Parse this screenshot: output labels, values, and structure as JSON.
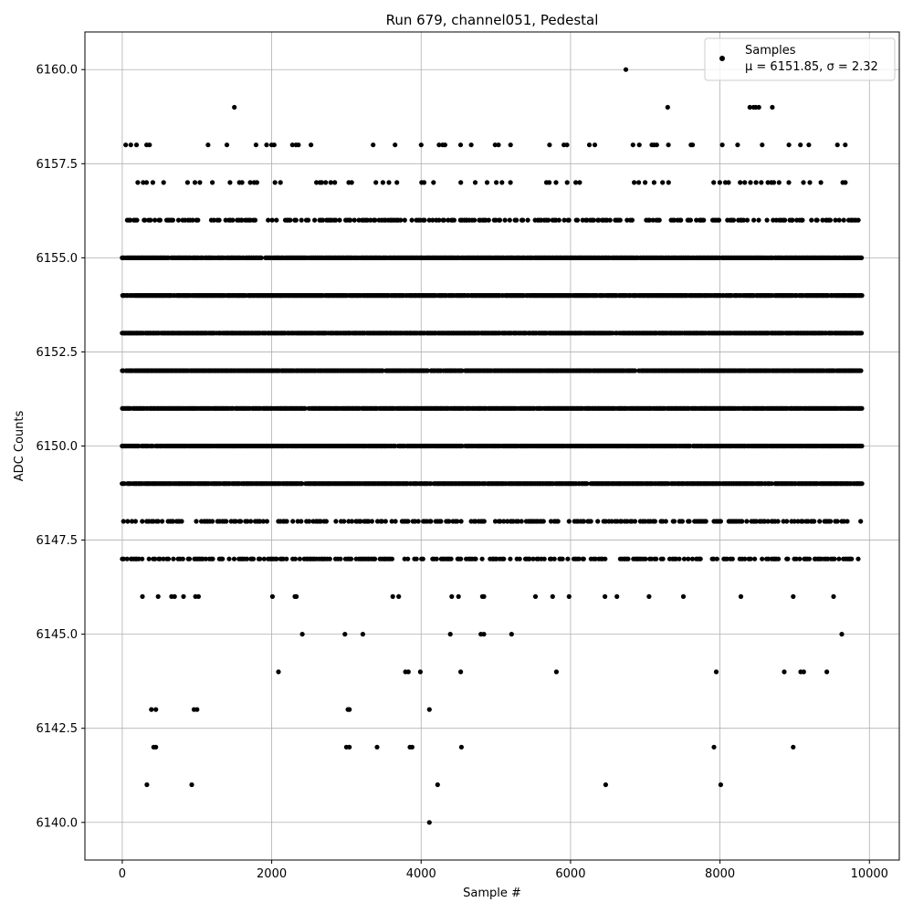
{
  "chart_data": {
    "type": "scatter",
    "title": "Run 679, channel051, Pedestal",
    "xlabel": "Sample #",
    "ylabel": "ADC Counts",
    "xlim": [
      -500,
      10400
    ],
    "ylim": [
      6139.0,
      6161.0
    ],
    "xticks": [
      0,
      2000,
      4000,
      6000,
      8000,
      10000
    ],
    "xtick_labels": [
      "0",
      "2000",
      "4000",
      "6000",
      "8000",
      "10000"
    ],
    "yticks": [
      6140.0,
      6142.5,
      6145.0,
      6147.5,
      6150.0,
      6152.5,
      6155.0,
      6157.5,
      6160.0
    ],
    "ytick_labels": [
      "6140.0",
      "6142.5",
      "6145.0",
      "6147.5",
      "6150.0",
      "6152.5",
      "6155.0",
      "6157.5",
      "6160.0"
    ],
    "grid": true,
    "legend": {
      "position": "top-right",
      "series_label": "Samples",
      "stats_label": "μ = 6151.85, σ = 2.32"
    },
    "series": [
      {
        "name": "Samples",
        "color": "#000000",
        "x_range": [
          0,
          9900
        ],
        "mean": 6151.85,
        "sigma": 2.32,
        "dense_levels": [
          6149,
          6150,
          6151,
          6152,
          6153,
          6154,
          6155
        ],
        "medium_levels": [
          6147,
          6148,
          6156
        ],
        "sparse_levels": [
          6157,
          6158
        ],
        "points": [
          [
            6740,
            6160
          ],
          [
            1500,
            6159
          ],
          [
            7300,
            6159
          ],
          [
            8400,
            6159
          ],
          [
            8450,
            6159
          ],
          [
            8480,
            6159
          ],
          [
            8520,
            6159
          ],
          [
            8700,
            6159
          ],
          [
            270,
            6146
          ],
          [
            480,
            6146
          ],
          [
            660,
            6146
          ],
          [
            700,
            6146
          ],
          [
            820,
            6146
          ],
          [
            980,
            6146
          ],
          [
            1020,
            6146
          ],
          [
            2010,
            6146
          ],
          [
            2310,
            6146
          ],
          [
            2330,
            6146
          ],
          [
            3620,
            6146
          ],
          [
            3700,
            6146
          ],
          [
            4410,
            6146
          ],
          [
            4500,
            6146
          ],
          [
            4820,
            6146
          ],
          [
            4840,
            6146
          ],
          [
            5530,
            6146
          ],
          [
            5760,
            6146
          ],
          [
            5980,
            6146
          ],
          [
            6460,
            6146
          ],
          [
            6620,
            6146
          ],
          [
            7050,
            6146
          ],
          [
            7510,
            6146
          ],
          [
            8280,
            6146
          ],
          [
            8980,
            6146
          ],
          [
            9520,
            6146
          ],
          [
            2410,
            6145
          ],
          [
            2980,
            6145
          ],
          [
            3220,
            6145
          ],
          [
            4390,
            6145
          ],
          [
            4800,
            6145
          ],
          [
            4840,
            6145
          ],
          [
            5210,
            6145
          ],
          [
            9630,
            6145
          ],
          [
            2090,
            6144
          ],
          [
            3790,
            6144
          ],
          [
            3830,
            6144
          ],
          [
            3990,
            6144
          ],
          [
            4530,
            6144
          ],
          [
            5810,
            6144
          ],
          [
            7950,
            6144
          ],
          [
            8860,
            6144
          ],
          [
            9080,
            6144
          ],
          [
            9120,
            6144
          ],
          [
            9430,
            6144
          ],
          [
            390,
            6143
          ],
          [
            450,
            6143
          ],
          [
            960,
            6143
          ],
          [
            1000,
            6143
          ],
          [
            3020,
            6143
          ],
          [
            3040,
            6143
          ],
          [
            4110,
            6143
          ],
          [
            420,
            6142
          ],
          [
            450,
            6142
          ],
          [
            3000,
            6142
          ],
          [
            3040,
            6142
          ],
          [
            3410,
            6142
          ],
          [
            3850,
            6142
          ],
          [
            3880,
            6142
          ],
          [
            4540,
            6142
          ],
          [
            7920,
            6142
          ],
          [
            8980,
            6142
          ],
          [
            330,
            6141
          ],
          [
            930,
            6141
          ],
          [
            4220,
            6141
          ],
          [
            6470,
            6141
          ],
          [
            8010,
            6141
          ],
          [
            4110,
            6140
          ]
        ]
      }
    ]
  }
}
